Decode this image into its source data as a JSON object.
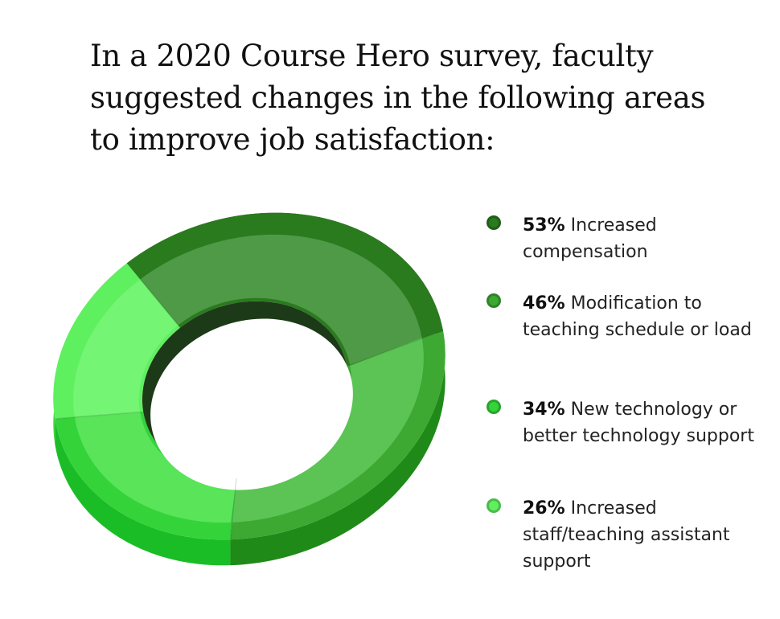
{
  "title": "In a 2020 Course Hero survey, faculty suggested changes in the following areas to improve job satisfaction:",
  "chart_data": {
    "type": "pie",
    "title": "In a 2020 Course Hero survey, faculty suggested changes in the following areas to improve job satisfaction:",
    "unit": "%",
    "series": [
      {
        "value_label": "53%",
        "value": 53,
        "label": "Increased compensation",
        "color": "#2a7a1e",
        "top_color": "#4e9a47",
        "side_color": "#14520f"
      },
      {
        "value_label": "46%",
        "value": 46,
        "label": "Modification to teaching schedule or load",
        "color": "#3da832",
        "top_color": "#5bc455",
        "side_color": "#1f8a18"
      },
      {
        "value_label": "34%",
        "value": 34,
        "label": "New technology or better technology support",
        "color": "#34d33a",
        "top_color": "#59e45a",
        "side_color": "#1bbd26"
      },
      {
        "value_label": "26%",
        "value": 26,
        "label": "Increased staff/teaching assistant support",
        "color": "#5ff05f",
        "top_color": "#74f574",
        "side_color": "#3fd43f"
      }
    ]
  }
}
